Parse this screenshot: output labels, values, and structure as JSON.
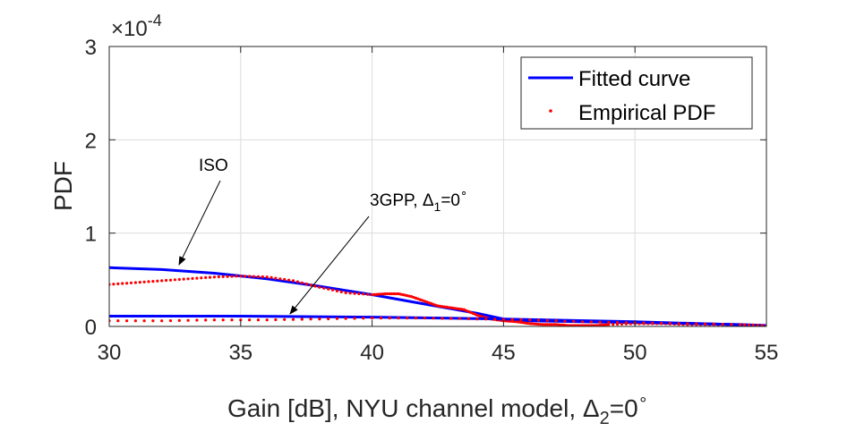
{
  "chart_data": {
    "type": "line",
    "xlabel": {
      "text": "Gain [dB], NYU channel model, ",
      "symbol": "Δ",
      "subscript": "2",
      "suffix": "=0",
      "superscript": "∘"
    },
    "ylabel": "PDF",
    "xlim": [
      30,
      55
    ],
    "ylim": [
      0,
      3
    ],
    "y_multiplier": {
      "base": "×10",
      "exponent": "-4"
    },
    "xticks": [
      "30",
      "35",
      "40",
      "45",
      "50",
      "55"
    ],
    "yticks": [
      "0",
      "1",
      "2",
      "3"
    ],
    "grid": true,
    "legend": {
      "position": "top-right",
      "entries": [
        {
          "label": "Fitted curve",
          "style": "solid-line",
          "color": "#0000ff"
        },
        {
          "label": "Empirical PDF",
          "style": "dots",
          "color": "#ff0000"
        }
      ]
    },
    "annotations": [
      {
        "text": "ISO",
        "target": [
          32.5,
          0.62
        ]
      },
      {
        "text": "3GPP, ",
        "symbol": "Δ",
        "subscript": "1",
        "suffix": "=0",
        "superscript": "∘",
        "target": [
          36.8,
          0.09
        ]
      }
    ],
    "series": [
      {
        "name": "ISO fitted",
        "kind": "line",
        "color": "#0000ff",
        "x": [
          30,
          32,
          34,
          36,
          38,
          40,
          42,
          44,
          45,
          46,
          48,
          50,
          52,
          54,
          55
        ],
        "y": [
          0.63,
          0.61,
          0.57,
          0.51,
          0.43,
          0.34,
          0.24,
          0.14,
          0.08,
          0.06,
          0.05,
          0.04,
          0.03,
          0.02,
          0.01
        ]
      },
      {
        "name": "ISO empirical",
        "kind": "dots",
        "color": "#ff0000",
        "x": [
          30,
          31,
          32,
          33,
          34,
          35,
          36,
          37,
          38,
          39,
          40,
          40.5,
          41,
          41.5,
          42,
          42.5,
          43,
          43.5,
          44,
          44.5,
          45,
          45.5,
          46,
          46.5,
          47,
          47.5,
          48,
          48.5,
          49,
          50,
          51,
          52,
          53,
          54,
          55
        ],
        "y": [
          0.45,
          0.47,
          0.49,
          0.51,
          0.53,
          0.54,
          0.53,
          0.49,
          0.42,
          0.36,
          0.34,
          0.35,
          0.35,
          0.32,
          0.27,
          0.22,
          0.2,
          0.18,
          0.12,
          0.08,
          0.06,
          0.05,
          0.03,
          0.02,
          0.02,
          0.01,
          0.01,
          0.01,
          0.02,
          0.03,
          0.03,
          0.02,
          0.02,
          0.01,
          0.01
        ]
      },
      {
        "name": "3GPP fitted",
        "kind": "line",
        "color": "#0000ff",
        "x": [
          30,
          35,
          40,
          45,
          50,
          55
        ],
        "y": [
          0.11,
          0.11,
          0.1,
          0.08,
          0.05,
          0.01
        ]
      },
      {
        "name": "3GPP empirical",
        "kind": "dots",
        "color": "#ff0000",
        "x": [
          30,
          32,
          34,
          36,
          38,
          40,
          42,
          44,
          46,
          48,
          50,
          52,
          54,
          55
        ],
        "y": [
          0.06,
          0.06,
          0.07,
          0.07,
          0.08,
          0.09,
          0.09,
          0.08,
          0.07,
          0.05,
          0.04,
          0.03,
          0.02,
          0.01
        ]
      }
    ]
  }
}
